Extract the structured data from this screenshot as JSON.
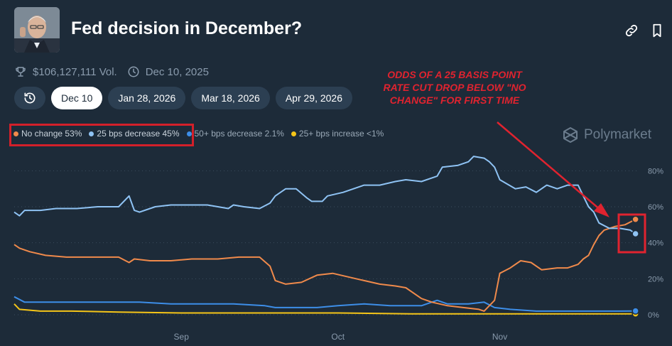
{
  "header": {
    "title": "Fed decision in December?",
    "volume": "$106,127,111 Vol.",
    "end_date": "Dec 10, 2025",
    "icons": [
      "link-icon",
      "bookmark-icon"
    ]
  },
  "meta_icons": [
    "trophy-icon",
    "clock-icon"
  ],
  "date_tabs": [
    {
      "label": "Dec 10",
      "active": true
    },
    {
      "label": "Jan 28, 2026",
      "active": false
    },
    {
      "label": "Mar 18, 2026",
      "active": false
    },
    {
      "label": "Apr 29, 2026",
      "active": false
    }
  ],
  "legend": [
    {
      "label": "No change 53%",
      "color": "#f08a4b"
    },
    {
      "label": "25 bps decrease 45%",
      "color": "#8fc3f4"
    },
    {
      "label": "50+ bps decrease 2.1%",
      "color": "#3d8ee8"
    },
    {
      "label": "25+ bps increase <1%",
      "color": "#f5c518"
    }
  ],
  "brand": "Polymarket",
  "annotation": "ODDS OF A 25 BASIS POINT RATE CUT DROP BELOW \"NO CHANGE\" FOR FIRST TIME",
  "annotation_color": "#e0232f",
  "chart_data": {
    "type": "line",
    "x_unit": "date",
    "x_ticks": [
      {
        "date": "2025-09-01",
        "label": "Sep"
      },
      {
        "date": "2025-10-01",
        "label": "Oct"
      },
      {
        "date": "2025-11-01",
        "label": "Nov"
      }
    ],
    "xlim": [
      "2025-07-31",
      "2025-11-28"
    ],
    "y_ticks": [
      "80%",
      "60%",
      "40%",
      "20%",
      "0%"
    ],
    "ylim": [
      0,
      90
    ],
    "grid": true,
    "series": [
      {
        "name": "25 bps decrease",
        "color": "#8fc3f4",
        "points": [
          [
            "2025-07-31",
            57
          ],
          [
            "2025-08-01",
            55
          ],
          [
            "2025-08-02",
            58
          ],
          [
            "2025-08-05",
            58
          ],
          [
            "2025-08-08",
            59
          ],
          [
            "2025-08-12",
            59
          ],
          [
            "2025-08-16",
            60
          ],
          [
            "2025-08-20",
            60
          ],
          [
            "2025-08-22",
            66
          ],
          [
            "2025-08-23",
            58
          ],
          [
            "2025-08-24",
            57
          ],
          [
            "2025-08-27",
            60
          ],
          [
            "2025-08-30",
            61
          ],
          [
            "2025-09-03",
            61
          ],
          [
            "2025-09-06",
            61
          ],
          [
            "2025-09-08",
            60
          ],
          [
            "2025-09-10",
            59
          ],
          [
            "2025-09-11",
            61
          ],
          [
            "2025-09-13",
            60
          ],
          [
            "2025-09-16",
            59
          ],
          [
            "2025-09-18",
            62
          ],
          [
            "2025-09-19",
            66
          ],
          [
            "2025-09-21",
            70
          ],
          [
            "2025-09-23",
            70
          ],
          [
            "2025-09-25",
            65
          ],
          [
            "2025-09-26",
            63
          ],
          [
            "2025-09-28",
            63
          ],
          [
            "2025-09-29",
            66
          ],
          [
            "2025-10-02",
            68
          ],
          [
            "2025-10-06",
            72
          ],
          [
            "2025-10-09",
            72
          ],
          [
            "2025-10-12",
            74
          ],
          [
            "2025-10-14",
            75
          ],
          [
            "2025-10-17",
            74
          ],
          [
            "2025-10-20",
            77
          ],
          [
            "2025-10-21",
            82
          ],
          [
            "2025-10-24",
            83
          ],
          [
            "2025-10-26",
            85
          ],
          [
            "2025-10-27",
            88
          ],
          [
            "2025-10-29",
            87
          ],
          [
            "2025-10-30",
            85
          ],
          [
            "2025-10-31",
            82
          ],
          [
            "2025-11-01",
            75
          ],
          [
            "2025-11-04",
            70
          ],
          [
            "2025-11-06",
            71
          ],
          [
            "2025-11-08",
            68
          ],
          [
            "2025-11-10",
            72
          ],
          [
            "2025-11-12",
            70
          ],
          [
            "2025-11-14",
            72
          ],
          [
            "2025-11-16",
            72
          ],
          [
            "2025-11-17",
            66
          ],
          [
            "2025-11-18",
            60
          ],
          [
            "2025-11-19",
            57
          ],
          [
            "2025-11-20",
            51
          ],
          [
            "2025-11-22",
            48
          ],
          [
            "2025-11-24",
            48
          ],
          [
            "2025-11-26",
            47
          ],
          [
            "2025-11-27",
            45
          ]
        ]
      },
      {
        "name": "No change",
        "color": "#f08a4b",
        "points": [
          [
            "2025-07-31",
            39
          ],
          [
            "2025-08-01",
            37
          ],
          [
            "2025-08-03",
            35
          ],
          [
            "2025-08-06",
            33
          ],
          [
            "2025-08-10",
            32
          ],
          [
            "2025-08-15",
            32
          ],
          [
            "2025-08-20",
            32
          ],
          [
            "2025-08-22",
            29
          ],
          [
            "2025-08-23",
            31
          ],
          [
            "2025-08-26",
            30
          ],
          [
            "2025-08-30",
            30
          ],
          [
            "2025-09-03",
            31
          ],
          [
            "2025-09-08",
            31
          ],
          [
            "2025-09-12",
            32
          ],
          [
            "2025-09-16",
            32
          ],
          [
            "2025-09-18",
            27
          ],
          [
            "2025-09-19",
            19
          ],
          [
            "2025-09-21",
            17
          ],
          [
            "2025-09-24",
            18
          ],
          [
            "2025-09-27",
            22
          ],
          [
            "2025-09-30",
            23
          ],
          [
            "2025-10-03",
            21
          ],
          [
            "2025-10-06",
            19
          ],
          [
            "2025-10-09",
            17
          ],
          [
            "2025-10-12",
            16
          ],
          [
            "2025-10-14",
            15
          ],
          [
            "2025-10-17",
            9
          ],
          [
            "2025-10-19",
            7
          ],
          [
            "2025-10-22",
            5
          ],
          [
            "2025-10-25",
            4
          ],
          [
            "2025-10-28",
            3
          ],
          [
            "2025-10-29",
            2
          ],
          [
            "2025-10-31",
            8
          ],
          [
            "2025-11-01",
            23
          ],
          [
            "2025-11-03",
            26
          ],
          [
            "2025-11-05",
            30
          ],
          [
            "2025-11-07",
            29
          ],
          [
            "2025-11-09",
            25
          ],
          [
            "2025-11-12",
            26
          ],
          [
            "2025-11-14",
            26
          ],
          [
            "2025-11-16",
            28
          ],
          [
            "2025-11-17",
            31
          ],
          [
            "2025-11-18",
            33
          ],
          [
            "2025-11-19",
            39
          ],
          [
            "2025-11-20",
            44
          ],
          [
            "2025-11-21",
            47
          ],
          [
            "2025-11-23",
            49
          ],
          [
            "2025-11-25",
            50
          ],
          [
            "2025-11-27",
            53
          ]
        ]
      },
      {
        "name": "50+ bps decrease",
        "color": "#3d8ee8",
        "points": [
          [
            "2025-07-31",
            10
          ],
          [
            "2025-08-02",
            7
          ],
          [
            "2025-08-06",
            7
          ],
          [
            "2025-08-12",
            7
          ],
          [
            "2025-08-18",
            7
          ],
          [
            "2025-08-24",
            7
          ],
          [
            "2025-08-30",
            6
          ],
          [
            "2025-09-05",
            6
          ],
          [
            "2025-09-11",
            6
          ],
          [
            "2025-09-17",
            5
          ],
          [
            "2025-09-19",
            4
          ],
          [
            "2025-09-23",
            4
          ],
          [
            "2025-09-27",
            4
          ],
          [
            "2025-10-01",
            5
          ],
          [
            "2025-10-06",
            6
          ],
          [
            "2025-10-11",
            5
          ],
          [
            "2025-10-17",
            5
          ],
          [
            "2025-10-20",
            8
          ],
          [
            "2025-10-22",
            6
          ],
          [
            "2025-10-26",
            6
          ],
          [
            "2025-10-29",
            7
          ],
          [
            "2025-10-31",
            4
          ],
          [
            "2025-11-03",
            3
          ],
          [
            "2025-11-08",
            2
          ],
          [
            "2025-11-14",
            2
          ],
          [
            "2025-11-20",
            2
          ],
          [
            "2025-11-24",
            2
          ],
          [
            "2025-11-27",
            2.1
          ]
        ]
      },
      {
        "name": "25+ bps increase",
        "color": "#f5c518",
        "points": [
          [
            "2025-07-31",
            6
          ],
          [
            "2025-08-01",
            3
          ],
          [
            "2025-08-05",
            2
          ],
          [
            "2025-08-11",
            2
          ],
          [
            "2025-08-20",
            1.5
          ],
          [
            "2025-09-01",
            1
          ],
          [
            "2025-09-15",
            1
          ],
          [
            "2025-10-01",
            1
          ],
          [
            "2025-10-15",
            0.5
          ],
          [
            "2025-11-01",
            0.5
          ],
          [
            "2025-11-15",
            0.5
          ],
          [
            "2025-11-27",
            0.5
          ]
        ]
      }
    ]
  }
}
